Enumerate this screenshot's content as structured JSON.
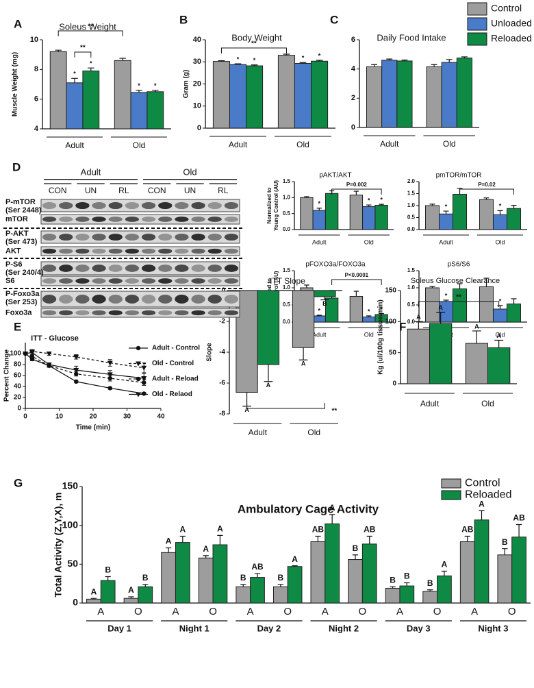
{
  "chart_data": [
    {
      "type": "bar",
      "panel": "A",
      "title": "Soleus Weight",
      "ylabel": "Muscle Weight (mg)",
      "categories": [
        "Adult",
        "Old"
      ],
      "series": [
        {
          "color": "#9d9d9d",
          "values": [
            9.2,
            8.6
          ],
          "errors": [
            0.1,
            0.15
          ],
          "annotations": [
            null,
            null
          ]
        },
        {
          "color": "#4a7bc8",
          "values": [
            7.1,
            6.45
          ],
          "errors": [
            0.3,
            0.15
          ],
          "annotations": [
            "*",
            "*"
          ]
        },
        {
          "color": "#0f8a45",
          "values": [
            7.9,
            6.5
          ],
          "errors": [
            0.2,
            0.1
          ],
          "annotations": [
            "*",
            "*"
          ]
        }
      ],
      "ylim": [
        4,
        10
      ],
      "yticks": [
        4,
        6,
        8,
        10
      ],
      "brackets": [
        "**",
        "**"
      ]
    },
    {
      "type": "bar",
      "panel": "B",
      "title": "Body Weight",
      "ylabel": "Gram (g)",
      "categories": [
        "Adult",
        "Old"
      ],
      "series": [
        {
          "color": "#9d9d9d",
          "values": [
            30.2,
            33.0
          ],
          "errors": [
            0.3,
            0.5
          ],
          "annotations": [
            null,
            null
          ]
        },
        {
          "color": "#4a7bc8",
          "values": [
            28.8,
            29.3
          ],
          "errors": [
            0.3,
            0.4
          ],
          "annotations": [
            "*",
            "*"
          ]
        },
        {
          "color": "#0f8a45",
          "values": [
            28.2,
            30.3
          ],
          "errors": [
            0.4,
            0.4
          ],
          "annotations": [
            "*",
            "*"
          ]
        }
      ],
      "ylim": [
        0,
        40
      ],
      "yticks": [
        0,
        10,
        20,
        30,
        40
      ],
      "brackets": [
        "**"
      ]
    },
    {
      "type": "bar",
      "panel": "C",
      "title": "Daily Food Intake",
      "categories": [
        "Adult",
        "Old"
      ],
      "series": [
        {
          "name": "Control",
          "color": "#9d9d9d",
          "values": [
            4.15,
            4.15
          ],
          "errors": [
            0.15,
            0.15
          ]
        },
        {
          "name": "Unloaded",
          "color": "#4a7bc8",
          "values": [
            4.6,
            4.45
          ],
          "errors": [
            0.08,
            0.2
          ]
        },
        {
          "name": "Reloaded",
          "color": "#0f8a45",
          "values": [
            4.55,
            4.75
          ],
          "errors": [
            0.06,
            0.08
          ]
        }
      ],
      "ylim": [
        0,
        6
      ],
      "yticks": [
        0,
        2,
        4,
        6
      ]
    },
    {
      "type": "bar",
      "title": "pAKT/AKT",
      "ylabel": [
        "Normalized to",
        "Young Control (AU)"
      ],
      "categories": [
        "Adult",
        "Old"
      ],
      "series": [
        {
          "color": "#9d9d9d",
          "values": [
            1.0,
            1.08
          ],
          "errors": [
            0.03,
            0.12
          ],
          "annotations": [
            null,
            null
          ]
        },
        {
          "color": "#4a7bc8",
          "values": [
            0.6,
            0.72
          ],
          "errors": [
            0.07,
            0.05
          ],
          "annotations": [
            "*",
            "*"
          ]
        },
        {
          "color": "#0f8a45",
          "values": [
            1.13,
            0.76
          ],
          "errors": [
            0.08,
            0.03
          ],
          "annotations": [
            null,
            "*"
          ]
        }
      ],
      "ylim": [
        0,
        1.5
      ],
      "yticks": [
        {
          "value": 0,
          "label": "0.0"
        },
        0.5,
        {
          "value": 1,
          "label": "1.0"
        },
        1.5
      ],
      "brackets": [
        "P=0.002"
      ]
    },
    {
      "type": "bar",
      "title": "pmTOR/mTOR",
      "categories": [
        "Adult",
        "Old"
      ],
      "series": [
        {
          "color": "#9d9d9d",
          "values": [
            1.0,
            1.25
          ],
          "errors": [
            0.06,
            0.07
          ],
          "annotations": [
            null,
            null
          ]
        },
        {
          "color": "#4a7bc8",
          "values": [
            0.65,
            0.62
          ],
          "errors": [
            0.12,
            0.17
          ],
          "annotations": [
            "*",
            "*"
          ]
        },
        {
          "color": "#0f8a45",
          "values": [
            1.47,
            0.88
          ],
          "errors": [
            0.25,
            0.13
          ],
          "annotations": [
            null,
            null
          ]
        }
      ],
      "ylim": [
        0,
        2
      ],
      "yticks": [
        {
          "value": 0,
          "label": "0.0"
        },
        0.5,
        {
          "value": 1,
          "label": "1.0"
        },
        1.5,
        {
          "value": 2,
          "label": "2.0"
        }
      ],
      "brackets": [
        "P=0.02"
      ]
    },
    {
      "type": "bar",
      "title": "pFOXO3a/FOXO3a",
      "ylabel": [
        "Normalized to",
        "Young Control (AU)"
      ],
      "categories": [
        "Adult",
        "Old"
      ],
      "series": [
        {
          "color": "#9d9d9d",
          "values": [
            1.0,
            0.75
          ],
          "errors": [
            0.08,
            0.15
          ],
          "annotations": [
            null,
            null
          ]
        },
        {
          "color": "#4a7bc8",
          "values": [
            0.18,
            0.15
          ],
          "errors": [
            0.02,
            0.03
          ],
          "annotations": [
            "*",
            "*"
          ]
        },
        {
          "color": "#0f8a45",
          "values": [
            0.7,
            0.22
          ],
          "errors": [
            0.22,
            0.03
          ],
          "annotations": [
            null,
            "*"
          ]
        }
      ],
      "ylim": [
        0,
        1.5
      ],
      "yticks": [
        {
          "value": 0,
          "label": "0.0"
        },
        0.5,
        {
          "value": 1,
          "label": "1.0"
        },
        1.5
      ],
      "brackets": [
        "P<0.0001"
      ]
    },
    {
      "type": "bar",
      "title": "pS6/S6",
      "categories": [
        "Adult",
        "Old"
      ],
      "series": [
        {
          "color": "#9d9d9d",
          "values": [
            1.0,
            1.03
          ],
          "errors": [
            0.04,
            0.25
          ],
          "annotations": [
            null,
            null
          ]
        },
        {
          "color": "#4a7bc8",
          "values": [
            0.6,
            0.38
          ],
          "errors": [
            0.04,
            0.1
          ],
          "annotations": [
            "*",
            "*"
          ]
        },
        {
          "color": "#0f8a45",
          "values": [
            0.97,
            0.53
          ],
          "errors": [
            0.15,
            0.15
          ],
          "annotations": [
            null,
            null
          ]
        }
      ],
      "ylim": [
        0,
        1.5
      ],
      "yticks": [
        {
          "value": 0,
          "label": "0.0"
        },
        0.5,
        {
          "value": 1,
          "label": "1.0"
        },
        1.5
      ]
    },
    {
      "type": "line",
      "panel": "E",
      "title": "ITT - Glucose",
      "xlabel": "Time (min)",
      "ylabel": "Percent Change",
      "x": [
        0,
        2,
        7,
        15,
        25,
        35
      ],
      "series": [
        {
          "name": "Adult - Control",
          "color": "#111111",
          "marker": "circle",
          "dashed": false,
          "values": [
            100,
            90,
            78,
            49,
            37,
            27
          ],
          "errors": [
            0,
            3,
            3,
            2,
            2,
            2
          ]
        },
        {
          "name": "Old - Control",
          "color": "#111111",
          "marker": "triangle",
          "dashed": true,
          "values": [
            100,
            104,
            100,
            94,
            83,
            74
          ],
          "errors": [
            0,
            3,
            3,
            4,
            6,
            9
          ]
        },
        {
          "name": "Adult - Reload",
          "color": "#111111",
          "marker": "circle",
          "dashed": true,
          "values": [
            100,
            95,
            78,
            63,
            55,
            47
          ],
          "errors": [
            0,
            3,
            3,
            4,
            5,
            5
          ]
        },
        {
          "name": "Old - Relaod",
          "color": "#111111",
          "marker": "triangle",
          "dashed": false,
          "values": [
            100,
            102,
            80,
            70,
            62,
            55
          ],
          "errors": [
            0,
            4,
            3,
            7,
            7,
            9
          ]
        }
      ],
      "xlim": [
        0,
        40
      ],
      "xticks": [
        0,
        10,
        20,
        30,
        40
      ],
      "ylim": [
        0,
        120
      ],
      "yticks": [
        0,
        20,
        40,
        60,
        80,
        100
      ]
    },
    {
      "type": "bar",
      "title": "ITT Slope",
      "ylabel": "Slope",
      "categories": [
        "Adult",
        "Old"
      ],
      "series": [
        {
          "color": "#9d9d9d",
          "values": [
            -6.6,
            -3.7
          ],
          "errors": [
            0.9,
            0.8
          ],
          "annotations": [
            "A",
            "A"
          ]
        },
        {
          "color": "#0f8a45",
          "values": [
            -4.8,
            -0.4
          ],
          "errors": [
            1.1,
            0.2
          ],
          "annotations": [
            "A",
            "B"
          ]
        }
      ],
      "ylim": [
        -8,
        0
      ],
      "yticks": [
        -8,
        -6,
        -4,
        -2,
        0
      ],
      "brackets": [
        "**"
      ]
    },
    {
      "type": "bar",
      "panel": "F",
      "title": "Soleus Glucose Clearance",
      "ylabel": "Kg (ul/100g tissue/min)",
      "categories": [
        "Adult",
        "Old"
      ],
      "series": [
        {
          "color": "#9d9d9d",
          "values": [
            88,
            65
          ],
          "errors": [
            12,
            20
          ],
          "annotations": [
            "A",
            "A"
          ]
        },
        {
          "color": "#0f8a45",
          "values": [
            97,
            58
          ],
          "errors": [
            18,
            12
          ],
          "annotations": [
            "A",
            "A"
          ]
        }
      ],
      "ylim": [
        0,
        150
      ],
      "yticks": [
        0,
        50,
        100,
        150
      ],
      "brackets": [
        "**"
      ]
    },
    {
      "type": "bar",
      "panel": "G",
      "title": "Ambulatory Cage Activity",
      "ylabel": "Total Activity (Z,Y,X), m",
      "categories": [
        "A",
        "O",
        "A",
        "O",
        "A",
        "O",
        "A",
        "O",
        "A",
        "O",
        "A",
        "O"
      ],
      "groups": [
        "Day 1",
        "Night 1",
        "Day 2",
        "Night 2",
        "Day 3",
        "Night 3"
      ],
      "series": [
        {
          "name": "Control",
          "color": "#9d9d9d",
          "values": [
            5,
            6,
            65,
            58,
            21,
            21,
            79,
            56,
            19,
            15,
            79,
            62
          ],
          "errors": [
            1,
            2,
            6,
            3,
            3,
            3,
            7,
            6,
            2,
            2,
            7,
            8
          ],
          "annotations": [
            "A",
            "A",
            "A",
            "A",
            "B",
            "B",
            "AB",
            "B",
            "B",
            "B",
            "AB",
            "B"
          ]
        },
        {
          "name": "Reloaded",
          "color": "#0f8a45",
          "values": [
            29,
            21,
            78,
            75,
            33,
            47,
            102,
            76,
            22,
            35,
            107,
            85
          ],
          "errors": [
            5,
            3,
            8,
            12,
            5,
            1,
            12,
            10,
            4,
            6,
            12,
            16
          ],
          "annotations": [
            "B",
            "B",
            "A",
            "A",
            "AB",
            "A",
            "A",
            "AB",
            "B",
            "A",
            "A",
            "AB"
          ]
        }
      ],
      "ylim": [
        0,
        150
      ],
      "yticks": [
        0,
        50,
        100,
        150
      ]
    }
  ],
  "blot": {
    "panel": "D",
    "groups": [
      "Adult",
      "Old"
    ],
    "lanes": [
      "CON",
      "UN",
      "RL",
      "CON",
      "UN",
      "RL"
    ],
    "rows": [
      [
        "P-mTOR",
        "(Ser 2448)"
      ],
      [
        "mTOR"
      ],
      [
        "P-AKT",
        "(Ser 473)"
      ],
      [
        "AKT"
      ],
      [
        "P-S6",
        "(Ser 240/4)"
      ],
      [
        "S6"
      ],
      [
        "P-Foxo3a",
        "(Ser 253)"
      ],
      [
        "Foxo3a"
      ]
    ]
  }
}
